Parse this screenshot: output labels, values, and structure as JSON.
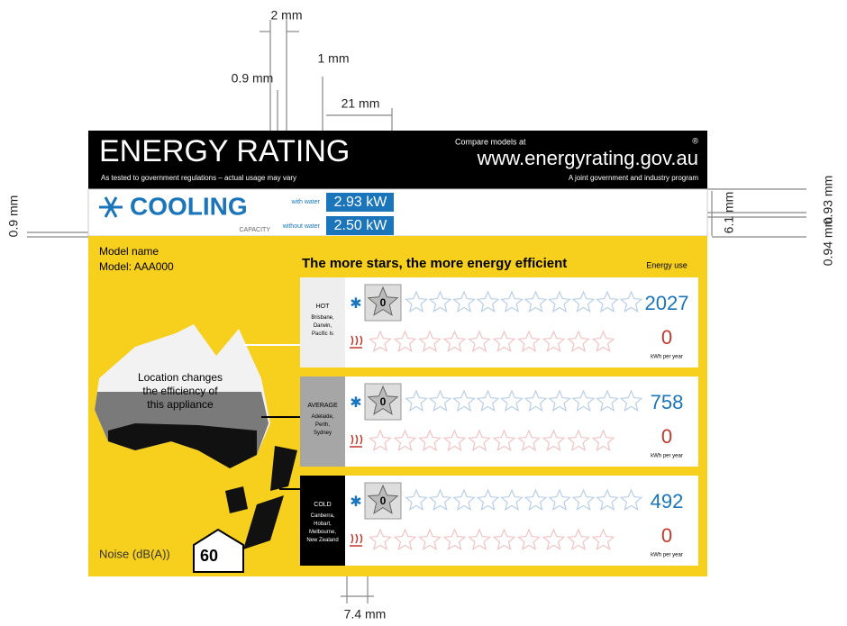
{
  "dimensions": {
    "top_gap": "2 mm",
    "top_left": "0.9 mm",
    "top_line": "1 mm",
    "top_width": "21 mm",
    "left": "0.9 mm",
    "right_height": "6.1 mm",
    "right_upper": "0.93 mm",
    "right_lower": "0.94 mm",
    "bottom": "7.4 mm"
  },
  "header": {
    "title": "ENERGY RATING",
    "subtitle": "As tested to government regulations – actual usage may vary",
    "compare": "Compare models at",
    "url": "www.energyrating.gov.au",
    "registered": "®",
    "program": "A joint government and industry program"
  },
  "capacity": {
    "mode": "COOLING",
    "label": "CAPACITY",
    "rows": [
      {
        "label": "with water",
        "value": "2.93 kW"
      },
      {
        "label": "without water",
        "value": "2.50 kW"
      }
    ]
  },
  "model": {
    "name": "Model name",
    "model": "Model: AAA000"
  },
  "efficiency_heading": "The more stars, the more energy efficient",
  "energy_use": "Energy use",
  "map_note": "Location changes the efficiency of this appliance",
  "zones": [
    {
      "zone": "HOT",
      "places": "Brisbane, Darwin, Pacific Is",
      "cooling_stars": "0",
      "cooling_use": "2027",
      "heating_use": "0",
      "unit": "kWh per year"
    },
    {
      "zone": "AVERAGE",
      "places": "Adelaide, Perth, Sydney",
      "cooling_stars": "0",
      "cooling_use": "758",
      "heating_use": "0",
      "unit": "kWh per year"
    },
    {
      "zone": "COLD",
      "places": "Canberra, Hobart, Melbourne, New Zealand",
      "cooling_stars": "0",
      "cooling_use": "492",
      "heating_use": "0",
      "unit": "kWh per year"
    }
  ],
  "noise": {
    "label": "Noise (dB(A))",
    "value": "60"
  }
}
